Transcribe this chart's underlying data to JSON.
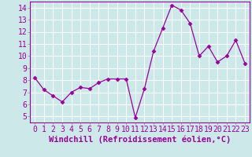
{
  "x": [
    0,
    1,
    2,
    3,
    4,
    5,
    6,
    7,
    8,
    9,
    10,
    11,
    12,
    13,
    14,
    15,
    16,
    17,
    18,
    19,
    20,
    21,
    22,
    23
  ],
  "y": [
    8.2,
    7.2,
    6.7,
    6.2,
    7.0,
    7.4,
    7.3,
    7.8,
    8.1,
    8.1,
    8.1,
    4.9,
    7.3,
    10.4,
    12.3,
    14.2,
    13.8,
    12.7,
    10.0,
    10.8,
    9.5,
    10.0,
    11.3,
    9.4
  ],
  "line_color": "#990099",
  "marker": "D",
  "marker_size": 2.5,
  "bg_color": "#cce8e8",
  "grid_color": "#ffffff",
  "xlabel": "Windchill (Refroidissement éolien,°C)",
  "xlabel_fontsize": 7.5,
  "tick_fontsize": 7,
  "ylim": [
    4.5,
    14.5
  ],
  "xlim": [
    -0.5,
    23.5
  ],
  "yticks": [
    5,
    6,
    7,
    8,
    9,
    10,
    11,
    12,
    13,
    14
  ],
  "xticks": [
    0,
    1,
    2,
    3,
    4,
    5,
    6,
    7,
    8,
    9,
    10,
    11,
    12,
    13,
    14,
    15,
    16,
    17,
    18,
    19,
    20,
    21,
    22,
    23
  ]
}
